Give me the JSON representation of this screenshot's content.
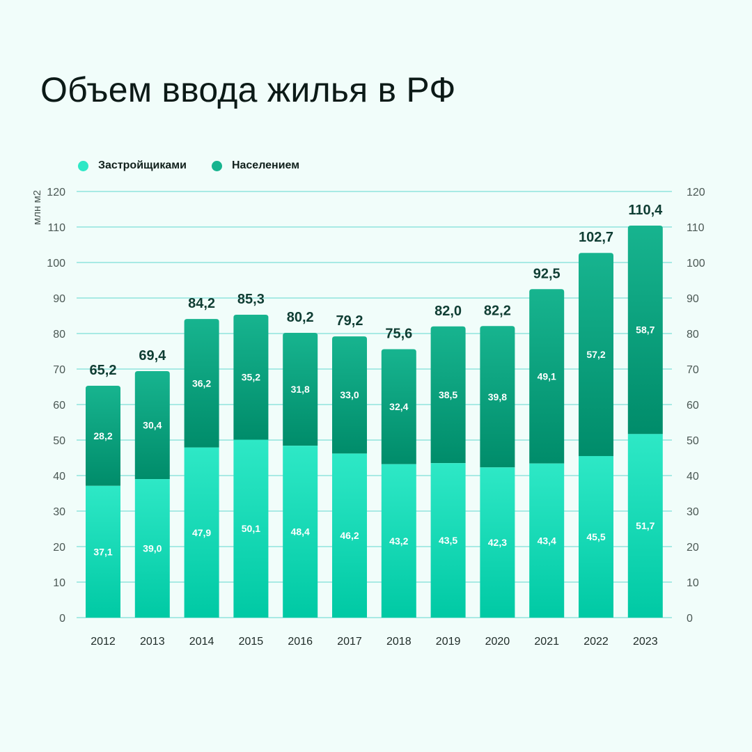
{
  "title": "Объем ввода жилья в РФ",
  "colors": {
    "background": "#f1fdfa",
    "developers": "#2ee8c6",
    "developers_dark": "#00c9a4",
    "population": "#17b48f",
    "population_dark": "#008c6a",
    "grid": "#8fe4dc",
    "axis_text": "#4a5753",
    "total_text": "#0f3d33",
    "inner_text": "#ffffff"
  },
  "legend": {
    "developers": "Застройщиками",
    "population": "Населением"
  },
  "chart_data": {
    "type": "bar",
    "stacked": true,
    "categories": [
      "2012",
      "2013",
      "2014",
      "2015",
      "2016",
      "2017",
      "2018",
      "2019",
      "2020",
      "2021",
      "2022",
      "2023"
    ],
    "series": [
      {
        "name": "Застройщиками",
        "values": [
          37.1,
          39.0,
          47.9,
          50.1,
          48.4,
          46.2,
          43.2,
          43.5,
          42.3,
          43.4,
          45.5,
          51.7
        ],
        "labels": [
          "37,1",
          "39,0",
          "47,9",
          "50,1",
          "48,4",
          "46,2",
          "43,2",
          "43,5",
          "42,3",
          "43,4",
          "45,5",
          "51,7"
        ]
      },
      {
        "name": "Населением",
        "values": [
          28.2,
          30.4,
          36.2,
          35.2,
          31.8,
          33.0,
          32.4,
          38.5,
          39.8,
          49.1,
          57.2,
          58.7
        ],
        "labels": [
          "28,2",
          "30,4",
          "36,2",
          "35,2",
          "31,8",
          "33,0",
          "32,4",
          "38,5",
          "39,8",
          "49,1",
          "57,2",
          "58,7"
        ]
      }
    ],
    "totals": [
      65.2,
      69.4,
      84.2,
      85.3,
      80.2,
      79.2,
      75.6,
      82.0,
      82.2,
      92.5,
      102.7,
      110.4
    ],
    "totals_labels": [
      "65,2",
      "69,4",
      "84,2",
      "85,3",
      "80,2",
      "79,2",
      "75,6",
      "82,0",
      "82,2",
      "92,5",
      "102,7",
      "110,4"
    ],
    "ylabel": "млн м2",
    "ylim": [
      0,
      120
    ],
    "yticks": [
      0,
      10,
      20,
      30,
      40,
      50,
      60,
      70,
      80,
      90,
      100,
      110,
      120
    ],
    "grid": true,
    "legend_position": "top-left"
  }
}
